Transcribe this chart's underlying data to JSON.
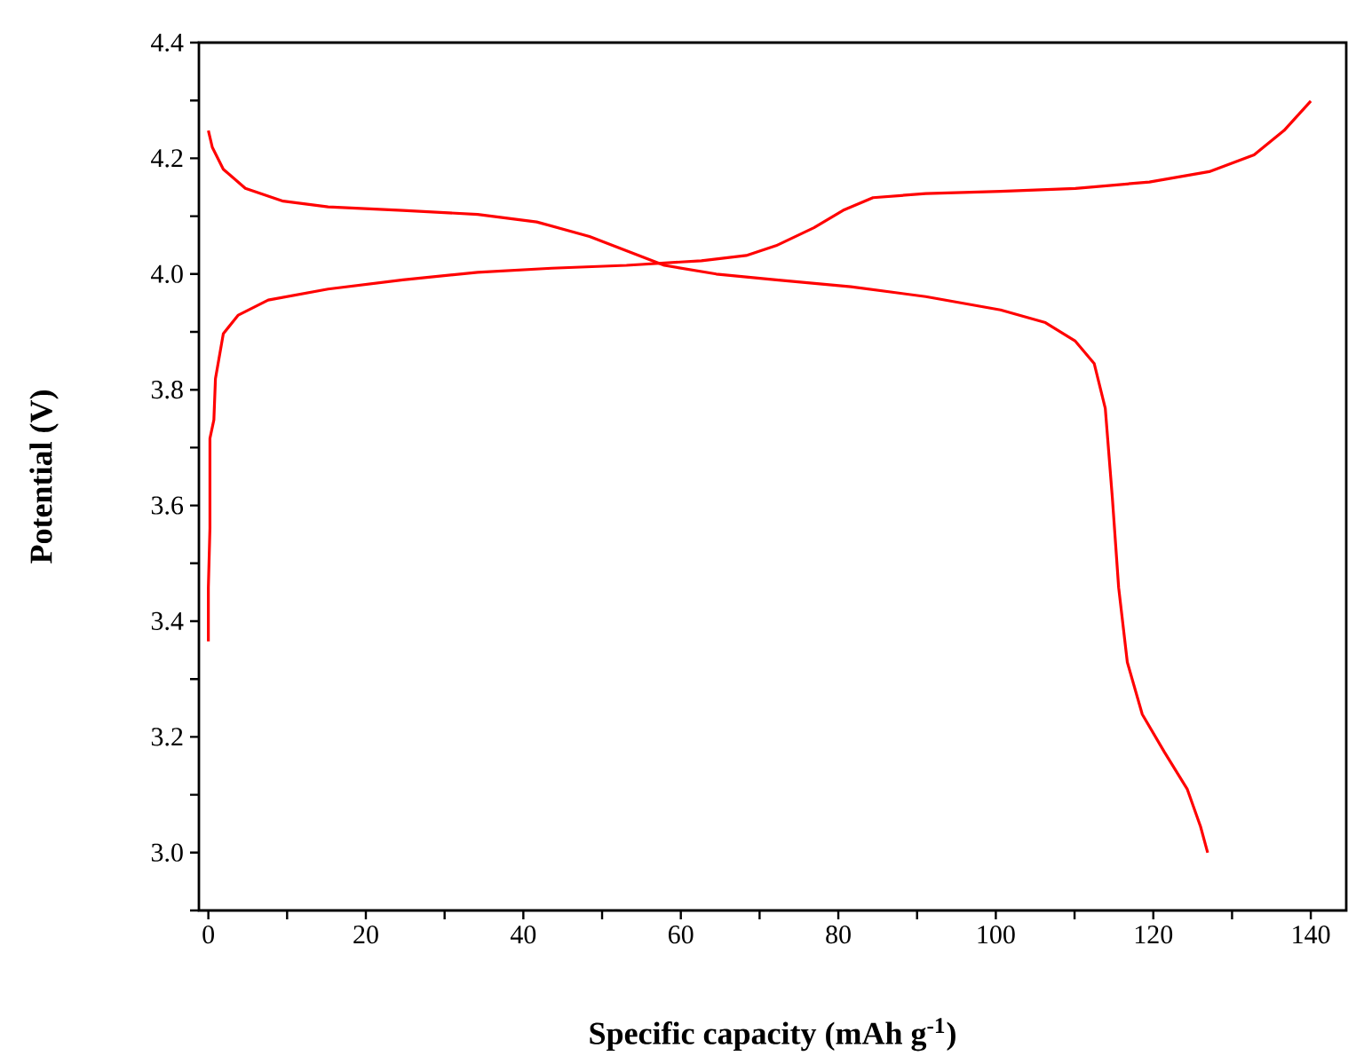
{
  "chart_data": {
    "type": "line",
    "xlabel": "Specific capacity (mAh g$^{-1}$)",
    "ylabel": "Potential (V)",
    "xlim": [
      -1.2,
      144.5
    ],
    "ylim": [
      2.9,
      4.4
    ],
    "xticks": [
      0,
      {
        "value": 10,
        "label": null
      },
      20,
      {
        "value": 30,
        "label": null
      },
      40,
      {
        "value": 50,
        "label": null
      },
      60,
      {
        "value": 70,
        "label": null
      },
      80,
      {
        "value": 90,
        "label": null
      },
      100,
      {
        "value": 110,
        "label": null
      },
      120,
      {
        "value": 130,
        "label": null
      },
      140
    ],
    "yticks": [
      {
        "value": 2.9,
        "label": null
      },
      {
        "value": 3.0,
        "label": "3.0"
      },
      {
        "value": 3.1,
        "label": null
      },
      3.2,
      {
        "value": 3.3,
        "label": null
      },
      3.4,
      {
        "value": 3.5,
        "label": null
      },
      3.6,
      {
        "value": 3.7,
        "label": null
      },
      3.8,
      {
        "value": 3.9,
        "label": null
      },
      {
        "value": 4.0,
        "label": "4.0"
      },
      {
        "value": 4.1,
        "label": null
      },
      4.2,
      {
        "value": 4.3,
        "label": null
      },
      4.4
    ],
    "marker": "none",
    "line_style": "solid",
    "series": [
      {
        "color": "#ff0000",
        "x": [
          0,
          0,
          0.2,
          0.2,
          0.7,
          0.9,
          1.9,
          3.8,
          7.6,
          15.2,
          24.7,
          34.2,
          43.6,
          53.1,
          62.6,
          68.3,
          72.1,
          76.9,
          80.6,
          84.4,
          91.1,
          100.6,
          110.1,
          119.5,
          127.1,
          132.8,
          136.6,
          140
        ],
        "values": [
          3.365,
          3.458,
          3.561,
          3.716,
          3.748,
          3.819,
          3.897,
          3.929,
          3.955,
          3.974,
          3.99,
          4.003,
          4.01,
          4.015,
          4.023,
          4.032,
          4.049,
          4.08,
          4.11,
          4.132,
          4.139,
          4.143,
          4.148,
          4.159,
          4.177,
          4.206,
          4.248,
          4.299
        ]
      },
      {
        "color": "#ff0000",
        "x": [
          0,
          0.5,
          1.9,
          4.7,
          9.5,
          15.2,
          24.7,
          34.2,
          41.7,
          48.4,
          57.9,
          64.5,
          72.1,
          81.6,
          91.1,
          100.6,
          106.3,
          110.1,
          112.5,
          113.9,
          114.8,
          115.6,
          116.7,
          118.6,
          121.4,
          124.3,
          126,
          126.9
        ],
        "values": [
          4.248,
          4.219,
          4.181,
          4.148,
          4.126,
          4.116,
          4.11,
          4.103,
          4.09,
          4.065,
          4.015,
          4.0,
          3.99,
          3.978,
          3.961,
          3.938,
          3.916,
          3.884,
          3.845,
          3.768,
          3.613,
          3.458,
          3.329,
          3.239,
          3.174,
          3.11,
          3.045,
          3.0
        ]
      }
    ]
  }
}
